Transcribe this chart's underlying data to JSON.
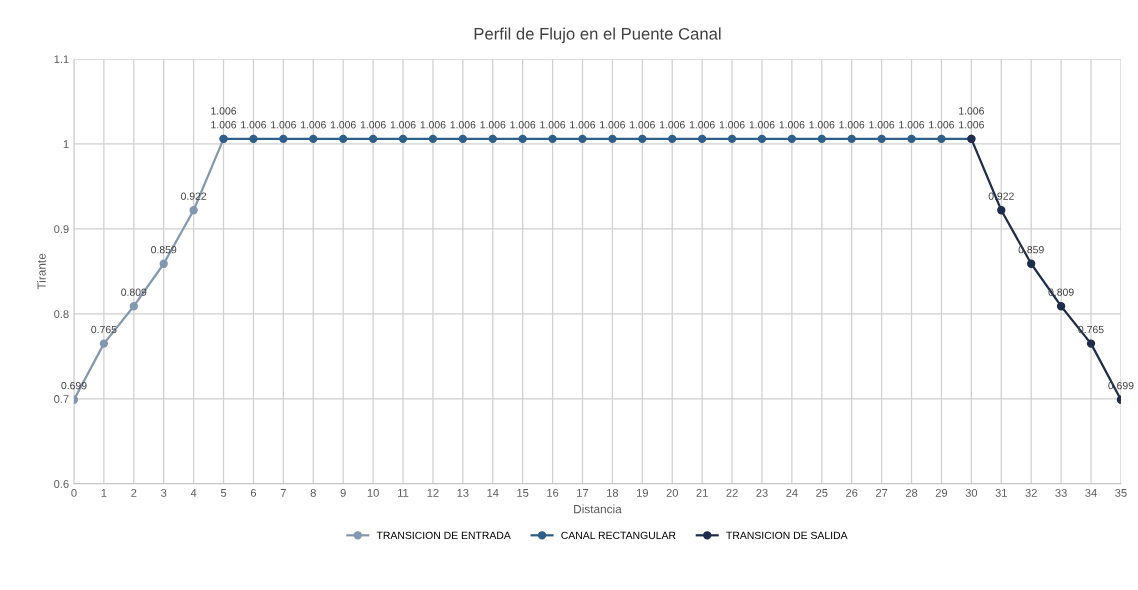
{
  "chart_data": {
    "type": "line",
    "title": "Perfil de Flujo en el Puente Canal",
    "xlabel": "Distancia",
    "ylabel": "Tirante",
    "xlim": [
      0,
      35
    ],
    "xticks": [
      0,
      1,
      2,
      3,
      4,
      5,
      6,
      7,
      8,
      9,
      10,
      11,
      12,
      13,
      14,
      15,
      16,
      17,
      18,
      19,
      20,
      21,
      22,
      23,
      24,
      25,
      26,
      27,
      28,
      29,
      30,
      31,
      32,
      33,
      34,
      35
    ],
    "ylim": [
      0.6,
      1.1
    ],
    "yticks": [
      {
        "value": 0.6,
        "label": "0.6"
      },
      {
        "value": 0.7,
        "label": "0.7"
      },
      {
        "value": 0.8,
        "label": "0.8"
      },
      {
        "value": 0.9,
        "label": "0.9"
      },
      {
        "value": 1.0,
        "label": "1"
      },
      {
        "value": 1.1,
        "label": "1.1"
      }
    ],
    "grid": true,
    "legend": "bottom",
    "marker": "circle",
    "line_style": "solid",
    "data_labels": true,
    "series": [
      {
        "name": "TRANSICION DE ENTRADA",
        "color": "#8497b0",
        "x": [
          0,
          1,
          2,
          3,
          4,
          5
        ],
        "values": [
          0.699,
          0.765,
          0.809,
          0.859,
          0.922,
          1.006
        ]
      },
      {
        "name": "CANAL RECTANGULAR",
        "color": "#2e5f8a",
        "x": [
          5,
          6,
          7,
          8,
          9,
          10,
          11,
          12,
          13,
          14,
          15,
          16,
          17,
          18,
          19,
          20,
          21,
          22,
          23,
          24,
          25,
          26,
          27,
          28,
          29,
          30
        ],
        "values": [
          1.006,
          1.006,
          1.006,
          1.006,
          1.006,
          1.006,
          1.006,
          1.006,
          1.006,
          1.006,
          1.006,
          1.006,
          1.006,
          1.006,
          1.006,
          1.006,
          1.006,
          1.006,
          1.006,
          1.006,
          1.006,
          1.006,
          1.006,
          1.006,
          1.006,
          1.006
        ]
      },
      {
        "name": "TRANSICION DE SALIDA",
        "color": "#1f2d4d",
        "x": [
          30,
          31,
          32,
          33,
          34,
          35
        ],
        "values": [
          1.006,
          0.922,
          0.859,
          0.809,
          0.765,
          0.699
        ]
      }
    ]
  }
}
